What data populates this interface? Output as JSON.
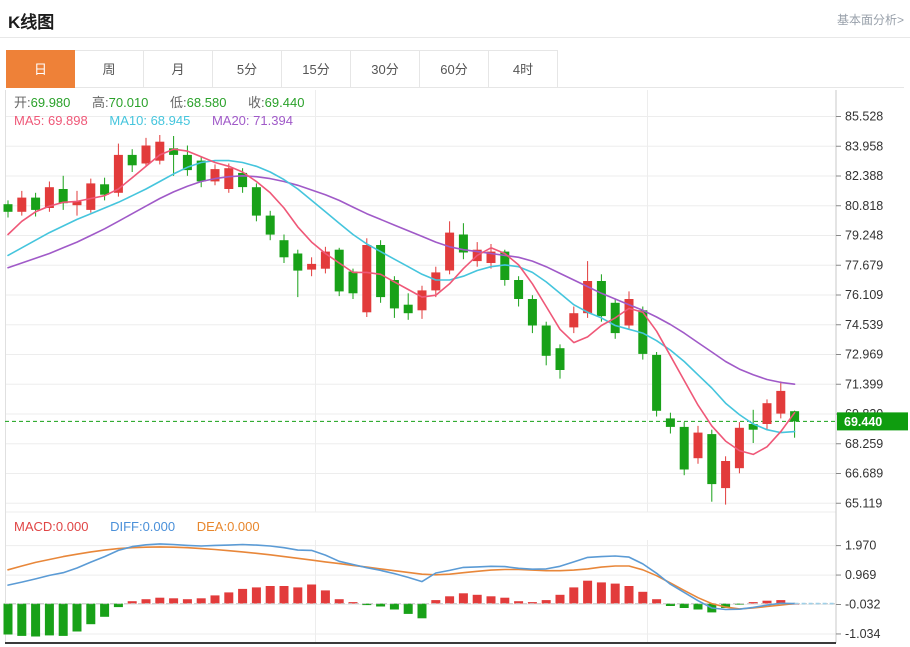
{
  "header": {
    "title": "K线图",
    "link": "基本面分析>"
  },
  "tabs": {
    "items": [
      {
        "label": "日",
        "active": true
      },
      {
        "label": "周",
        "active": false
      },
      {
        "label": "月",
        "active": false
      },
      {
        "label": "5分",
        "active": false
      },
      {
        "label": "15分",
        "active": false
      },
      {
        "label": "30分",
        "active": false
      },
      {
        "label": "60分",
        "active": false
      },
      {
        "label": "4时",
        "active": false
      }
    ]
  },
  "info": {
    "open_label": "开:",
    "open": "69.980",
    "high_label": "高:",
    "high": "70.010",
    "low_label": "低:",
    "low": "68.580",
    "close_label": "收:",
    "close": "69.440"
  },
  "ma": {
    "ma5_label": "MA5:",
    "ma5": "69.898",
    "ma10_label": "MA10:",
    "ma10": "68.945",
    "ma20_label": "MA20:",
    "ma20": "71.394"
  },
  "macd_info": {
    "macd_label": "MACD:",
    "macd": "0.000",
    "diff_label": "DIFF:",
    "diff": "0.000",
    "dea_label": "DEA:",
    "dea": "0.000"
  },
  "price_tag": "69.440",
  "colors": {
    "up": "#e23b3b",
    "down": "#18a118",
    "badge": "#0f9d0f",
    "tab_active": "#ee8138",
    "ma5": "#ef5878",
    "ma10": "#45c5dd",
    "ma20": "#a05ac8",
    "diff_line": "#5b9bd5",
    "dea_line": "#e8873a",
    "grid": "#ededed",
    "axis_text": "#333333",
    "dashed_price": "#18a118"
  },
  "chart_data": {
    "type": "candlestick+macd",
    "main": {
      "y_tick_labels": [
        "85.528",
        "83.958",
        "82.388",
        "80.818",
        "79.248",
        "77.679",
        "76.109",
        "74.539",
        "72.969",
        "71.399",
        "69.830",
        "68.259",
        "66.689",
        "65.119"
      ],
      "last_price": 69.44,
      "candles_ohlc": [
        [
          80.9,
          81.1,
          80.2,
          80.5
        ],
        [
          80.5,
          81.6,
          80.3,
          81.25
        ],
        [
          81.25,
          81.5,
          80.25,
          80.6
        ],
        [
          80.7,
          82.1,
          80.5,
          81.8
        ],
        [
          81.7,
          82.4,
          80.6,
          80.95
        ],
        [
          80.85,
          81.6,
          80.3,
          81.05
        ],
        [
          80.6,
          82.25,
          80.45,
          82.0
        ],
        [
          81.95,
          82.3,
          81.1,
          81.4
        ],
        [
          81.5,
          84.1,
          81.3,
          83.5
        ],
        [
          83.5,
          83.8,
          82.6,
          82.95
        ],
        [
          83.05,
          84.4,
          82.9,
          84.0
        ],
        [
          83.2,
          84.55,
          83.0,
          84.2
        ],
        [
          83.85,
          84.5,
          82.4,
          83.5
        ],
        [
          83.5,
          84.0,
          82.4,
          82.7
        ],
        [
          83.2,
          83.4,
          81.8,
          82.1
        ],
        [
          82.1,
          83.0,
          81.9,
          82.75
        ],
        [
          81.7,
          83.05,
          81.5,
          82.8
        ],
        [
          82.55,
          82.8,
          81.5,
          81.8
        ],
        [
          81.8,
          82.0,
          80.0,
          80.3
        ],
        [
          80.3,
          80.55,
          79.0,
          79.3
        ],
        [
          79.0,
          79.3,
          77.8,
          78.1
        ],
        [
          78.3,
          78.5,
          76.0,
          77.4
        ],
        [
          77.45,
          78.1,
          77.1,
          77.75
        ],
        [
          77.5,
          78.65,
          77.25,
          78.4
        ],
        [
          78.5,
          78.6,
          76.05,
          76.3
        ],
        [
          77.35,
          77.5,
          75.9,
          76.2
        ],
        [
          75.2,
          79.1,
          74.95,
          78.75
        ],
        [
          78.75,
          79.0,
          75.7,
          76.0
        ],
        [
          76.9,
          77.1,
          74.9,
          75.4
        ],
        [
          75.6,
          76.2,
          74.8,
          75.15
        ],
        [
          75.3,
          76.6,
          74.85,
          76.35
        ],
        [
          76.35,
          77.6,
          76.0,
          77.3
        ],
        [
          77.4,
          80.0,
          77.2,
          79.4
        ],
        [
          79.3,
          79.9,
          78.0,
          78.35
        ],
        [
          77.9,
          78.9,
          77.6,
          78.5
        ],
        [
          77.8,
          78.8,
          77.5,
          78.4
        ],
        [
          78.4,
          78.5,
          76.6,
          76.9
        ],
        [
          76.9,
          77.1,
          75.5,
          75.9
        ],
        [
          75.9,
          76.1,
          74.1,
          74.5
        ],
        [
          74.5,
          74.7,
          72.4,
          72.9
        ],
        [
          73.3,
          73.5,
          71.7,
          72.15
        ],
        [
          74.4,
          75.5,
          74.1,
          75.15
        ],
        [
          75.15,
          77.9,
          74.9,
          76.85
        ],
        [
          76.85,
          77.2,
          74.7,
          75.0
        ],
        [
          75.7,
          75.9,
          73.8,
          74.1
        ],
        [
          74.5,
          76.3,
          74.3,
          75.9
        ],
        [
          75.3,
          75.5,
          72.7,
          73.0
        ],
        [
          72.95,
          73.1,
          69.7,
          70.0
        ],
        [
          69.6,
          69.9,
          68.8,
          69.15
        ],
        [
          69.15,
          69.4,
          66.6,
          66.9
        ],
        [
          67.5,
          69.2,
          67.2,
          68.85
        ],
        [
          68.77,
          69.0,
          65.2,
          66.13
        ],
        [
          65.92,
          67.6,
          65.05,
          67.35
        ],
        [
          66.97,
          69.4,
          66.7,
          69.1
        ],
        [
          69.3,
          70.05,
          68.3,
          69.0
        ],
        [
          69.3,
          70.6,
          69.0,
          70.4
        ],
        [
          69.85,
          71.55,
          69.6,
          71.05
        ],
        [
          69.98,
          70.01,
          68.58,
          69.44
        ]
      ],
      "ma5": [
        79.3,
        80.0,
        80.5,
        80.8,
        81.0,
        81.05,
        81.2,
        81.35,
        81.7,
        82.3,
        82.9,
        83.5,
        83.8,
        83.7,
        83.4,
        83.1,
        82.9,
        82.6,
        82.1,
        81.5,
        80.7,
        79.7,
        78.9,
        78.3,
        77.8,
        77.3,
        77.3,
        77.2,
        76.8,
        76.4,
        76.0,
        76.1,
        76.7,
        77.5,
        78.2,
        78.6,
        78.3,
        77.7,
        76.7,
        75.5,
        74.3,
        73.6,
        73.9,
        74.5,
        74.9,
        75.4,
        75.2,
        74.2,
        72.9,
        71.6,
        70.3,
        69.2,
        68.4,
        67.9,
        67.7,
        68.1,
        68.9,
        69.9
      ],
      "ma10": [
        78.2,
        78.6,
        79.0,
        79.4,
        79.75,
        80.1,
        80.4,
        80.7,
        81.0,
        81.35,
        81.7,
        82.1,
        82.5,
        82.85,
        83.1,
        83.2,
        83.2,
        83.1,
        82.9,
        82.6,
        82.2,
        81.7,
        81.1,
        80.5,
        79.9,
        79.3,
        78.8,
        78.4,
        78.0,
        77.6,
        77.2,
        76.9,
        76.9,
        77.1,
        77.4,
        77.6,
        77.7,
        77.6,
        77.3,
        76.8,
        76.2,
        75.6,
        75.2,
        74.9,
        74.5,
        74.3,
        74.1,
        73.7,
        73.2,
        72.6,
        71.9,
        71.2,
        70.4,
        69.8,
        69.3,
        69.0,
        68.85,
        68.9
      ],
      "ma20": [
        77.55,
        77.8,
        78.05,
        78.3,
        78.6,
        78.9,
        79.25,
        79.6,
        80.0,
        80.4,
        80.8,
        81.2,
        81.55,
        81.85,
        82.1,
        82.25,
        82.35,
        82.4,
        82.35,
        82.25,
        82.1,
        81.9,
        81.65,
        81.4,
        81.1,
        80.75,
        80.4,
        80.1,
        79.8,
        79.5,
        79.2,
        78.9,
        78.65,
        78.5,
        78.4,
        78.3,
        78.2,
        78.1,
        77.9,
        77.6,
        77.25,
        76.9,
        76.55,
        76.2,
        75.9,
        75.6,
        75.3,
        74.95,
        74.55,
        74.1,
        73.6,
        73.1,
        72.6,
        72.2,
        71.9,
        71.65,
        71.5,
        71.4
      ]
    },
    "macd": {
      "y_tick_labels": [
        "1.970",
        "0.969",
        "-0.032",
        "-1.034"
      ],
      "hist": [
        -1.05,
        -1.1,
        -1.12,
        -1.08,
        -1.1,
        -0.95,
        -0.7,
        -0.45,
        -0.12,
        0.08,
        0.15,
        0.2,
        0.18,
        0.15,
        0.18,
        0.28,
        0.38,
        0.5,
        0.55,
        0.6,
        0.6,
        0.55,
        0.65,
        0.45,
        0.15,
        0.05,
        -0.05,
        -0.1,
        -0.2,
        -0.35,
        -0.5,
        0.12,
        0.25,
        0.35,
        0.3,
        0.25,
        0.2,
        0.08,
        0.05,
        0.12,
        0.3,
        0.55,
        0.78,
        0.72,
        0.68,
        0.6,
        0.4,
        0.15,
        -0.08,
        -0.15,
        -0.2,
        -0.3,
        -0.15,
        -0.02,
        0.05,
        0.1,
        0.12,
        0.0
      ],
      "diff": [
        0.63,
        0.73,
        0.84,
        0.96,
        1.05,
        1.21,
        1.41,
        1.6,
        1.81,
        1.94,
        2.0,
        2.03,
        2.01,
        1.98,
        1.96,
        1.98,
        1.99,
        2.01,
        1.99,
        1.96,
        1.9,
        1.82,
        1.81,
        1.65,
        1.44,
        1.33,
        1.22,
        1.13,
        1.02,
        0.89,
        0.75,
        1.04,
        1.13,
        1.23,
        1.25,
        1.27,
        1.26,
        1.2,
        1.17,
        1.18,
        1.27,
        1.42,
        1.57,
        1.6,
        1.62,
        1.58,
        1.35,
        1.03,
        0.66,
        0.38,
        0.1,
        -0.15,
        -0.2,
        -0.19,
        -0.13,
        -0.05,
        0.01,
        0.0
      ],
      "dea": [
        1.15,
        1.28,
        1.4,
        1.5,
        1.6,
        1.68,
        1.76,
        1.82,
        1.87,
        1.9,
        1.92,
        1.93,
        1.92,
        1.9,
        1.87,
        1.84,
        1.8,
        1.76,
        1.71,
        1.66,
        1.6,
        1.54,
        1.48,
        1.42,
        1.36,
        1.3,
        1.24,
        1.18,
        1.12,
        1.06,
        1.0,
        0.98,
        1.0,
        1.05,
        1.1,
        1.14,
        1.16,
        1.16,
        1.14,
        1.12,
        1.12,
        1.14,
        1.18,
        1.24,
        1.28,
        1.28,
        1.15,
        0.95,
        0.7,
        0.45,
        0.2,
        0.0,
        -0.12,
        -0.18,
        -0.15,
        -0.1,
        -0.05,
        0.0
      ]
    }
  }
}
